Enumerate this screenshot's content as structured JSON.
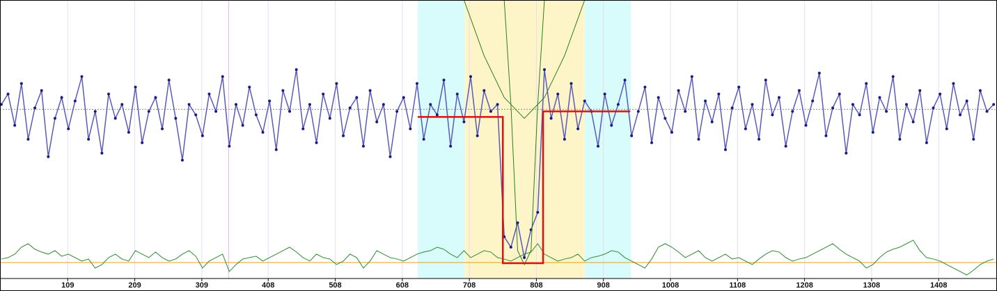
{
  "chart_data": {
    "type": "line",
    "xlim": [
      8,
      1495
    ],
    "ylim": [
      0,
      400
    ],
    "xticks": [
      109,
      209,
      309,
      408,
      508,
      608,
      708,
      808,
      908,
      1008,
      1108,
      1208,
      1308,
      1408
    ],
    "grid": true,
    "grid_color": "#e6dcf2",
    "marker_line": {
      "x": 349,
      "color": "#e8b4e8"
    },
    "regions": [
      {
        "x0": 631,
        "x1": 701,
        "color": "#d8fbfb"
      },
      {
        "x0": 701,
        "x1": 880,
        "color": "#fdf5c8"
      },
      {
        "x0": 880,
        "x1": 949,
        "color": "#d8fbfb"
      }
    ],
    "reference_lines": [
      {
        "y": 243,
        "color": "#888888",
        "dash": true
      },
      {
        "y": 23,
        "color": "#e0a020",
        "dash": false
      }
    ],
    "x": [
      10,
      20,
      30,
      40,
      50,
      60,
      70,
      80,
      90,
      100,
      110,
      120,
      130,
      140,
      150,
      160,
      170,
      180,
      190,
      200,
      210,
      220,
      230,
      240,
      250,
      260,
      270,
      280,
      290,
      300,
      310,
      320,
      330,
      340,
      350,
      360,
      370,
      380,
      390,
      400,
      410,
      420,
      430,
      440,
      450,
      460,
      470,
      480,
      490,
      500,
      510,
      520,
      530,
      540,
      550,
      560,
      570,
      580,
      590,
      600,
      610,
      620,
      630,
      640,
      650,
      660,
      670,
      680,
      690,
      700,
      710,
      720,
      730,
      740,
      750,
      760,
      770,
      780,
      790,
      800,
      810,
      820,
      830,
      840,
      850,
      860,
      870,
      880,
      890,
      900,
      910,
      920,
      930,
      940,
      950,
      960,
      970,
      980,
      990,
      1000,
      1010,
      1020,
      1030,
      1040,
      1050,
      1060,
      1070,
      1080,
      1090,
      1100,
      1110,
      1120,
      1130,
      1140,
      1150,
      1160,
      1170,
      1180,
      1190,
      1200,
      1210,
      1220,
      1230,
      1240,
      1250,
      1260,
      1270,
      1280,
      1290,
      1300,
      1310,
      1320,
      1330,
      1340,
      1350,
      1360,
      1370,
      1380,
      1390,
      1400,
      1410,
      1420,
      1430,
      1440,
      1450,
      1460,
      1470,
      1480,
      1490
    ],
    "series": [
      {
        "color": "#5a5ab8",
        "markers": true,
        "width": 1.5,
        "values": [
          250,
          265,
          220,
          280,
          200,
          245,
          270,
          175,
          230,
          260,
          215,
          255,
          290,
          200,
          240,
          180,
          265,
          230,
          250,
          210,
          275,
          195,
          240,
          260,
          215,
          285,
          230,
          170,
          250,
          235,
          205,
          265,
          240,
          290,
          190,
          250,
          220,
          275,
          235,
          210,
          255,
          185,
          270,
          240,
          300,
          215,
          250,
          195,
          265,
          230,
          280,
          205,
          245,
          260,
          190,
          270,
          225,
          250,
          175,
          240,
          260,
          215,
          280,
          200,
          250,
          235,
          285,
          190,
          265,
          225,
          290,
          205,
          270,
          240,
          250,
          60,
          45,
          80,
          30,
          70,
          95,
          300,
          230,
          265,
          200,
          280,
          215,
          255,
          240,
          190,
          265,
          220,
          250,
          285,
          205,
          240,
          275,
          195,
          260,
          230,
          210,
          270,
          240,
          290,
          200,
          255,
          225,
          265,
          185,
          245,
          275,
          215,
          250,
          200,
          285,
          235,
          260,
          190,
          240,
          270,
          220,
          255,
          295,
          205,
          245,
          265,
          180,
          250,
          235,
          280,
          210,
          260,
          240,
          290,
          200,
          250,
          225,
          270,
          195,
          245,
          265,
          215,
          280,
          235,
          255,
          200,
          270,
          240,
          250
        ]
      },
      {
        "color": "#2e8b2e",
        "markers": false,
        "width": 1,
        "values": [
          28,
          30,
          35,
          45,
          50,
          42,
          38,
          35,
          40,
          32,
          35,
          30,
          25,
          28,
          15,
          20,
          30,
          35,
          28,
          25,
          40,
          35,
          30,
          38,
          30,
          25,
          28,
          35,
          40,
          32,
          15,
          25,
          30,
          35,
          10,
          20,
          28,
          30,
          32,
          25,
          30,
          35,
          40,
          45,
          38,
          30,
          25,
          35,
          30,
          28,
          20,
          25,
          35,
          30,
          15,
          25,
          40,
          35,
          30,
          28,
          25,
          30,
          35,
          38,
          40,
          45,
          42,
          35,
          30,
          40,
          30,
          35,
          40,
          38,
          30,
          28,
          25,
          30,
          35,
          38,
          50,
          35,
          30,
          25,
          28,
          30,
          35,
          25,
          30,
          32,
          35,
          40,
          38,
          30,
          25,
          20,
          15,
          28,
          45,
          50,
          45,
          38,
          30,
          35,
          40,
          30,
          25,
          30,
          35,
          28,
          30,
          25,
          20,
          28,
          35,
          40,
          38,
          30,
          25,
          28,
          30,
          35,
          40,
          45,
          50,
          42,
          35,
          30,
          25,
          15,
          20,
          30,
          38,
          42,
          45,
          50,
          55,
          40,
          30,
          28,
          25,
          20,
          15,
          10,
          5,
          12,
          20,
          25,
          28
        ]
      },
      {
        "color": "#2e7d1e",
        "markers": false,
        "width": 1,
        "x": [
          700,
          730,
          760,
          790,
          820,
          850,
          880
        ],
        "values": [
          400,
          320,
          260,
          230,
          260,
          320,
          400
        ]
      },
      {
        "color": "#2e7d1e",
        "markers": false,
        "width": 1,
        "x": [
          760,
          770,
          780,
          790,
          800,
          810,
          820
        ],
        "values": [
          400,
          250,
          40,
          20,
          40,
          250,
          400
        ]
      },
      {
        "color": "#e01010",
        "markers": false,
        "width": 2.5,
        "x": [
          631,
          758,
          758,
          818,
          818,
          948
        ],
        "values": [
          232,
          232,
          22,
          22,
          240,
          240
        ]
      }
    ]
  }
}
